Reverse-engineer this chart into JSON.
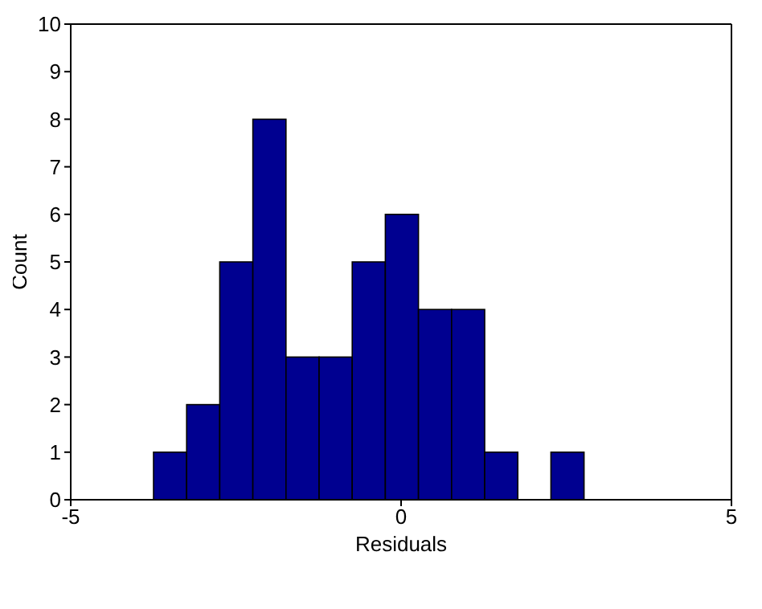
{
  "chart_data": {
    "type": "histogram",
    "xlabel": "Residuals",
    "ylabel": "Count",
    "bins": [
      -3.75,
      -3.25,
      -2.75,
      -2.25,
      -1.75,
      -1.25,
      -0.75,
      -0.25,
      0.25,
      0.75,
      1.25,
      1.75,
      2.25,
      2.75
    ],
    "values": [
      1,
      2,
      5,
      8,
      3,
      3,
      5,
      6,
      4,
      4,
      1,
      0,
      1
    ],
    "color": "#000090",
    "xlim": [
      -5,
      5
    ],
    "xticks": [
      -5,
      0,
      5
    ],
    "ylim": [
      0,
      10
    ],
    "yticks": [
      0,
      1,
      2,
      3,
      4,
      5,
      6,
      7,
      8,
      9,
      10
    ],
    "grid": false
  }
}
